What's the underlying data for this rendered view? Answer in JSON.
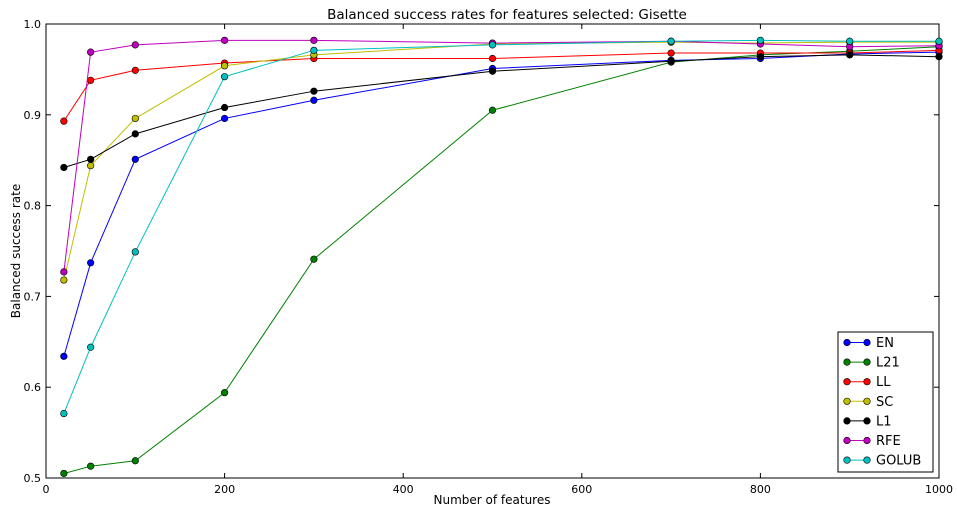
{
  "chart_data": {
    "type": "line",
    "title": "Balanced success rates for features selected: Gisette",
    "xlabel": "Number of features",
    "ylabel": "Balanced success rate",
    "xlim": [
      0,
      1000
    ],
    "ylim": [
      0.5,
      1.0
    ],
    "xticks": [
      "0",
      "200",
      "400",
      "600",
      "800",
      "1000"
    ],
    "yticks": [
      "0.5",
      "0.6",
      "0.7",
      "0.8",
      "0.9",
      "1.0"
    ],
    "grid": false,
    "legend_position": "bottom-right",
    "x": [
      20,
      50,
      100,
      200,
      300,
      500,
      700,
      800,
      900,
      1000
    ],
    "series": [
      {
        "name": "EN",
        "color": "#0000ff",
        "values": [
          0.634,
          0.737,
          0.851,
          0.896,
          0.916,
          0.951,
          0.96,
          0.962,
          0.967,
          0.969
        ]
      },
      {
        "name": "L21",
        "color": "#008000",
        "values": [
          0.505,
          0.513,
          0.519,
          0.594,
          0.741,
          0.905,
          0.958,
          0.966,
          0.97,
          0.975
        ]
      },
      {
        "name": "LL",
        "color": "#ff0000",
        "values": [
          0.893,
          0.938,
          0.949,
          0.957,
          0.962,
          0.962,
          0.968,
          0.968,
          0.968,
          0.971
        ]
      },
      {
        "name": "SC",
        "color": "#bfbf00",
        "values": [
          0.718,
          0.844,
          0.896,
          0.954,
          0.966,
          0.978,
          0.98,
          0.979,
          0.98,
          0.98
        ]
      },
      {
        "name": "L1",
        "color": "#000000",
        "values": [
          0.842,
          0.851,
          0.879,
          0.908,
          0.926,
          0.948,
          0.959,
          0.964,
          0.966,
          0.964
        ]
      },
      {
        "name": "RFE",
        "color": "#bf00bf",
        "values": [
          0.727,
          0.969,
          0.977,
          0.982,
          0.982,
          0.979,
          0.981,
          0.978,
          0.975,
          0.976
        ]
      },
      {
        "name": "GOLUB",
        "color": "#00bfbf",
        "values": [
          0.571,
          0.644,
          0.749,
          0.942,
          0.971,
          0.977,
          0.981,
          0.982,
          0.981,
          0.981
        ]
      }
    ]
  }
}
